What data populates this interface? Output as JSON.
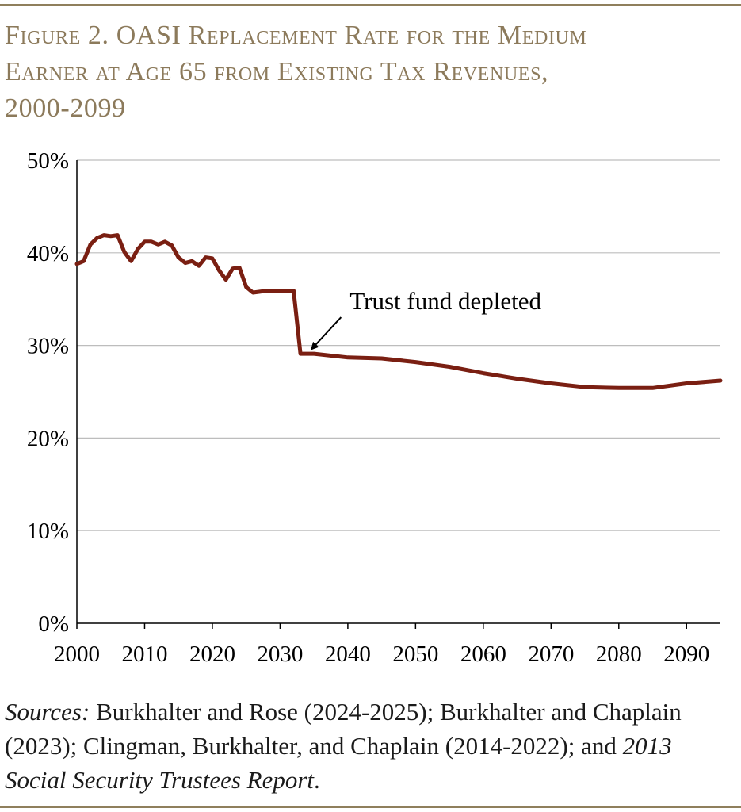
{
  "title_line1": "Figure 2. OASI Replacement Rate for the Medium",
  "title_line2": "Earner at Age 65 from Existing Tax Revenues,",
  "title_line3": "2000-2099",
  "sources": {
    "label": "Sources:",
    "text1": " Burkhalter and Rose (2024-2025); Burkhalter and Chaplain (2023); Clingman, Burkhalter, and Chaplain (2014-2022); and ",
    "report": "2013 Social Security Trustees Report",
    "end": "."
  },
  "chart_data": {
    "type": "line",
    "title": "OASI Replacement Rate for the Medium Earner at Age 65 from Existing Tax Revenues, 2000-2099",
    "xlabel": "",
    "ylabel": "",
    "xlim": [
      2000,
      2095
    ],
    "ylim": [
      0,
      50
    ],
    "grid": true,
    "line_color": "#7a1f12",
    "x_ticks": [
      2000,
      2010,
      2020,
      2030,
      2040,
      2050,
      2060,
      2070,
      2080,
      2090
    ],
    "x_tick_labels": [
      "2000",
      "2010",
      "2020",
      "2030",
      "2040",
      "2050",
      "2060",
      "2070",
      "2080",
      "2090"
    ],
    "y_ticks": [
      0,
      10,
      20,
      30,
      40,
      50
    ],
    "y_tick_labels": [
      "0%",
      "10%",
      "20%",
      "30%",
      "40%",
      "50%"
    ],
    "series": [
      {
        "name": "Replacement rate",
        "x": [
          2000,
          2001,
          2002,
          2003,
          2004,
          2005,
          2006,
          2007,
          2008,
          2009,
          2010,
          2011,
          2012,
          2013,
          2014,
          2015,
          2016,
          2017,
          2018,
          2019,
          2020,
          2021,
          2022,
          2023,
          2024,
          2025,
          2026,
          2027,
          2028,
          2029,
          2030,
          2031,
          2032,
          2033,
          2035,
          2040,
          2045,
          2050,
          2055,
          2060,
          2065,
          2070,
          2075,
          2080,
          2085,
          2090,
          2095
        ],
        "values": [
          38.8,
          39.1,
          40.9,
          41.6,
          41.9,
          41.8,
          41.9,
          40.1,
          39.1,
          40.4,
          41.2,
          41.2,
          40.9,
          41.2,
          40.8,
          39.5,
          38.9,
          39.1,
          38.6,
          39.5,
          39.4,
          38.1,
          37.1,
          38.3,
          38.4,
          36.3,
          35.7,
          35.8,
          35.9,
          35.9,
          35.9,
          35.9,
          35.9,
          29.1,
          29.1,
          28.7,
          28.6,
          28.2,
          27.7,
          27.0,
          26.4,
          25.9,
          25.5,
          25.4,
          25.4,
          25.9,
          26.2
        ]
      }
    ],
    "annotations": [
      {
        "text": "Trust fund depleted",
        "x": 2033.5,
        "y": 29.1
      }
    ]
  }
}
